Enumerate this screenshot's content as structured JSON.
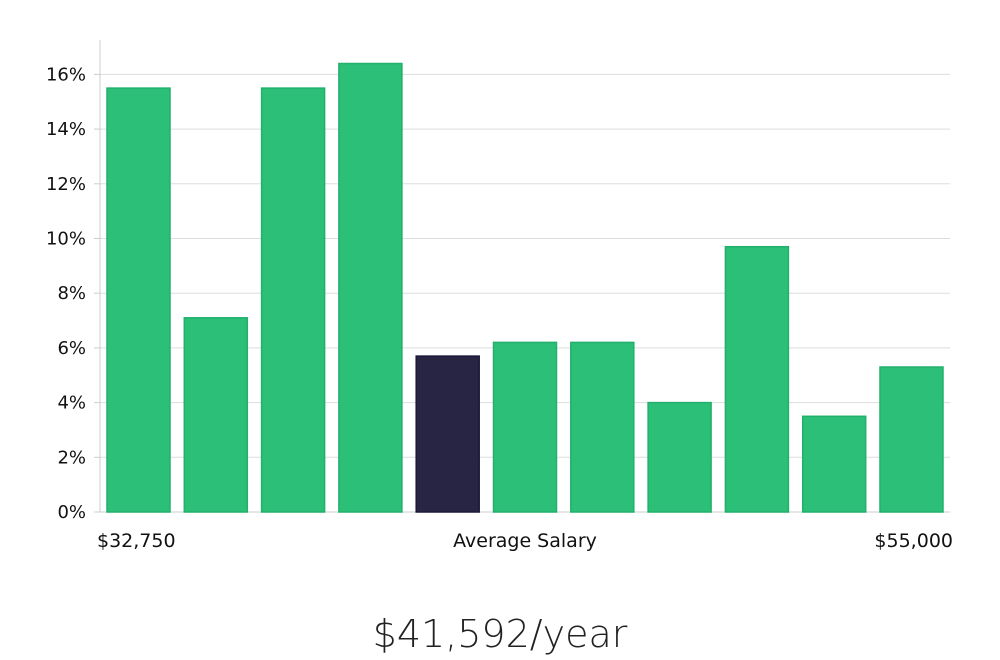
{
  "chart_data": {
    "type": "bar",
    "values": [
      15.5,
      7.1,
      15.5,
      16.4,
      5.7,
      6.2,
      6.2,
      4.0,
      9.7,
      3.5,
      5.3
    ],
    "highlight_index": 4,
    "ylim": [
      0,
      17
    ],
    "yticks": [
      0,
      2,
      4,
      6,
      8,
      10,
      12,
      14,
      16
    ],
    "ytick_labels": [
      "0%",
      "2%",
      "4%",
      "6%",
      "8%",
      "10%",
      "12%",
      "14%",
      "16%"
    ],
    "grid": true,
    "x_labels": {
      "left": "$32,750",
      "center": "Average Salary",
      "right": "$55,000"
    },
    "colors": {
      "bar": "#2bbf78",
      "bar_stroke": "#22b06c",
      "highlight": "#272444",
      "grid": "#dddddd",
      "axis": "#cccccc"
    }
  },
  "salary": {
    "display": "$41,592/year"
  }
}
